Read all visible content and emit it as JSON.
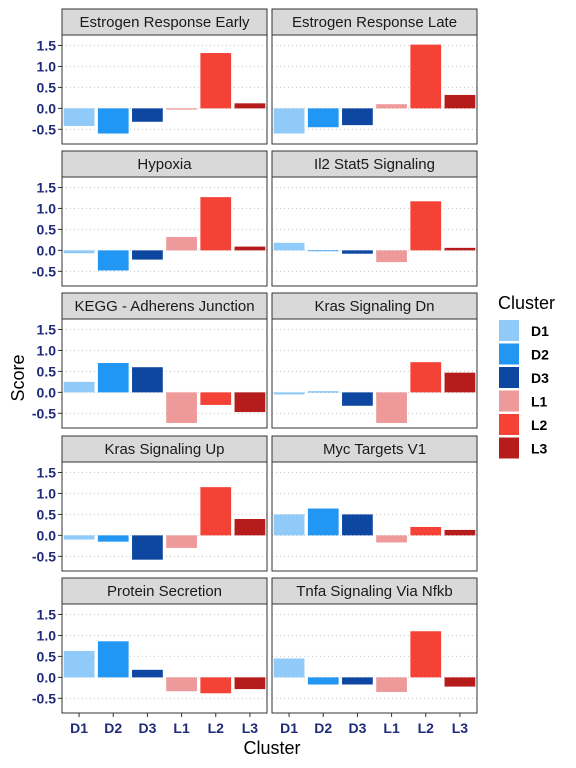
{
  "chart_data": {
    "type": "bar",
    "xlabel": "Cluster",
    "ylabel": "Score",
    "categories": [
      "D1",
      "D2",
      "D3",
      "L1",
      "L2",
      "L3"
    ],
    "yticks": [
      "1.5",
      "1.0",
      "0.5",
      "0.0",
      "-0.5"
    ],
    "ylim": [
      -0.85,
      1.75
    ],
    "grid": "horizontal dotted",
    "legend": {
      "title": "Cluster",
      "placement": "right",
      "items": [
        "D1",
        "D2",
        "D3",
        "L1",
        "L2",
        "L3"
      ]
    },
    "colors": {
      "D1": "#90caf9",
      "D2": "#2196f3",
      "D3": "#0d47a1",
      "L1": "#ef9a9a",
      "L2": "#f44336",
      "L3": "#b71c1c"
    },
    "panels": [
      {
        "title": "Estrogen Response Early",
        "values": [
          -0.42,
          -0.6,
          -0.32,
          -0.03,
          1.32,
          0.12
        ]
      },
      {
        "title": "Estrogen Response Late",
        "values": [
          -0.6,
          -0.45,
          -0.4,
          0.1,
          1.52,
          0.32
        ]
      },
      {
        "title": "Hypoxia",
        "values": [
          -0.07,
          -0.48,
          -0.22,
          0.32,
          1.27,
          0.09
        ]
      },
      {
        "title": "Il2 Stat5 Signaling",
        "values": [
          0.18,
          -0.02,
          -0.08,
          -0.28,
          1.17,
          0.06
        ]
      },
      {
        "title": "KEGG - Adherens Junction",
        "values": [
          0.25,
          0.7,
          0.6,
          -0.73,
          -0.3,
          -0.47
        ]
      },
      {
        "title": "Kras Signaling Dn",
        "values": [
          -0.05,
          0.02,
          -0.32,
          -0.73,
          0.72,
          0.47
        ]
      },
      {
        "title": "Kras Signaling Up",
        "values": [
          -0.1,
          -0.15,
          -0.58,
          -0.3,
          1.15,
          0.39
        ]
      },
      {
        "title": "Myc Targets V1",
        "values": [
          0.5,
          0.64,
          0.5,
          -0.17,
          0.2,
          0.13
        ]
      },
      {
        "title": "Protein Secretion",
        "values": [
          0.63,
          0.86,
          0.18,
          -0.33,
          -0.38,
          -0.28
        ]
      },
      {
        "title": "Tnfa Signaling Via Nfkb",
        "values": [
          0.45,
          -0.17,
          -0.17,
          -0.35,
          1.1,
          -0.22
        ]
      }
    ]
  }
}
